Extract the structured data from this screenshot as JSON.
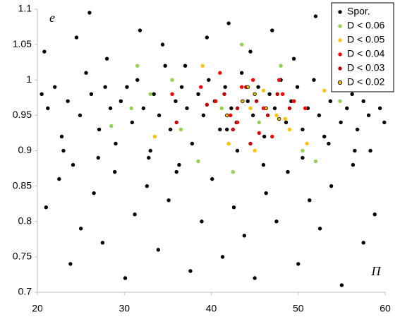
{
  "chart_data": {
    "type": "scatter",
    "x_label": "Π",
    "y_label": "e",
    "xlim": [
      20,
      60
    ],
    "xticks": [
      20,
      30,
      40,
      50,
      60
    ],
    "ylim": [
      0.7,
      1.1
    ],
    "yticks": [
      0.7,
      0.75,
      0.8,
      0.85,
      0.9,
      0.95,
      1,
      1.05,
      1.1
    ],
    "legend": "upper right",
    "series": [
      {
        "name": "Spor.",
        "color": "#000000",
        "x": [
          20.5,
          21.2,
          22.0,
          22.8,
          23.5,
          24.1,
          24.9,
          25.6,
          26.2,
          26.0,
          27.1,
          27.8,
          28.4,
          29.0,
          29.6,
          30.3,
          30.9,
          31.5,
          32.2,
          32.8,
          33.4,
          34.0,
          34.7,
          35.3,
          35.9,
          36.6,
          37.2,
          37.8,
          38.5,
          39.1,
          39.7,
          40.4,
          41.0,
          41.6,
          42.3,
          42.9,
          43.5,
          44.2,
          44.8,
          45.4,
          46.1,
          46.7,
          47.3,
          48.0,
          48.6,
          49.2,
          49.9,
          50.5,
          51.1,
          51.8,
          52.4,
          53.0,
          53.7,
          54.3,
          54.9,
          55.6,
          56.2,
          56.8,
          57.5,
          58.1,
          58.7,
          59.4,
          59.9,
          21.0,
          22.5,
          23.8,
          25.0,
          26.5,
          27.5,
          28.9,
          30.1,
          31.2,
          32.6,
          33.9,
          35.1,
          36.3,
          37.6,
          38.9,
          40.1,
          41.3,
          42.6,
          43.8,
          45.0,
          46.3,
          47.5,
          48.8,
          50.0,
          51.3,
          52.5,
          53.8,
          55.0,
          56.3,
          57.5,
          58.8,
          20.8,
          24.5,
          28.0,
          31.8,
          34.4,
          37.0,
          39.5,
          42.0,
          44.5,
          47.0,
          49.5,
          52.0,
          54.5,
          57.0,
          59.5,
          23.0,
          27.0,
          33.0,
          36.0,
          43.0,
          46.0,
          50.5,
          53.5,
          56.5,
          58.3,
          41.8
        ],
        "values": [
          0.98,
          0.96,
          0.99,
          0.92,
          0.97,
          0.88,
          0.95,
          1.01,
          0.98,
          1.095,
          0.93,
          0.99,
          0.96,
          0.91,
          0.97,
          0.99,
          0.94,
          1.0,
          0.96,
          0.89,
          0.98,
          0.95,
          1.02,
          0.93,
          0.97,
          0.99,
          0.96,
          0.91,
          0.98,
          0.95,
          1.0,
          0.97,
          0.93,
          0.99,
          0.96,
          0.94,
          1.01,
          0.97,
          0.95,
          0.99,
          0.92,
          0.98,
          0.96,
          1.0,
          0.94,
          0.97,
          0.99,
          0.93,
          0.96,
          1.0,
          0.95,
          0.92,
          0.97,
          0.99,
          0.94,
          0.96,
          0.98,
          0.93,
          0.97,
          0.95,
          0.99,
          0.96,
          0.94,
          0.82,
          0.86,
          0.74,
          0.79,
          0.84,
          0.77,
          0.87,
          0.72,
          0.81,
          0.85,
          0.76,
          0.83,
          0.88,
          0.73,
          0.8,
          0.86,
          0.75,
          0.82,
          0.78,
          0.72,
          0.84,
          0.8,
          0.87,
          0.74,
          0.83,
          0.79,
          0.85,
          0.71,
          0.88,
          0.77,
          0.81,
          1.04,
          1.06,
          1.03,
          1.07,
          1.05,
          1.02,
          1.06,
          1.08,
          1.04,
          1.07,
          1.03,
          1.09,
          1.05,
          1.02,
          1.06,
          0.9,
          0.89,
          0.9,
          0.87,
          0.9,
          0.88,
          0.89,
          0.91,
          0.9,
          0.9,
          0.93
        ]
      },
      {
        "name": "D < 0.06",
        "color": "#92d050",
        "x": [
          28.5,
          30.8,
          33.0,
          35.5,
          38.5,
          41.2,
          43.5,
          45.5,
          48.0,
          50.5,
          52.0,
          54.8,
          31.5,
          36.5,
          42.5
        ],
        "values": [
          0.935,
          0.96,
          0.98,
          1.0,
          0.885,
          0.96,
          1.05,
          0.94,
          1.02,
          0.9,
          0.885,
          0.97,
          1.02,
          0.93,
          0.87
        ]
      },
      {
        "name": "D < 0.05",
        "color": "#ffc000",
        "x": [
          33.5,
          39.0,
          42.0,
          44.5,
          46.0,
          47.5,
          49.0,
          51.0,
          53.0,
          40.5,
          45.0,
          48.5
        ],
        "values": [
          0.92,
          1.02,
          0.91,
          0.96,
          0.985,
          0.95,
          0.93,
          0.91,
          0.985,
          0.97,
          0.9,
          0.945
        ]
      },
      {
        "name": "D < 0.04",
        "color": "#ff0000",
        "x": [
          35.5,
          38.8,
          40.5,
          42.2,
          43.5,
          44.8,
          46.0,
          47.0,
          48.2,
          49.5,
          50.8,
          45.5,
          43.0,
          41.0,
          47.8
        ],
        "values": [
          0.98,
          0.99,
          0.97,
          0.95,
          0.99,
          1.0,
          0.96,
          0.92,
          0.98,
          0.97,
          0.96,
          0.925,
          0.94,
          1.01,
          1.0
        ]
      },
      {
        "name": "D < 0.03",
        "color": "#c00000",
        "x": [
          36.0,
          39.5,
          41.5,
          43.0,
          44.0,
          45.2,
          46.5,
          47.6,
          49.0,
          42.5,
          44.5
        ],
        "values": [
          0.94,
          0.965,
          0.98,
          0.96,
          0.99,
          0.97,
          0.95,
          0.98,
          0.96,
          0.93,
          0.91
        ]
      },
      {
        "name": "D < 0.02",
        "color": "#e8c000",
        "edgecolor": "#000000",
        "x": [
          41.8,
          43.6,
          45.0,
          46.3,
          47.8,
          44.2
        ],
        "values": [
          0.95,
          0.97,
          0.98,
          0.96,
          0.945,
          0.99
        ]
      }
    ]
  }
}
